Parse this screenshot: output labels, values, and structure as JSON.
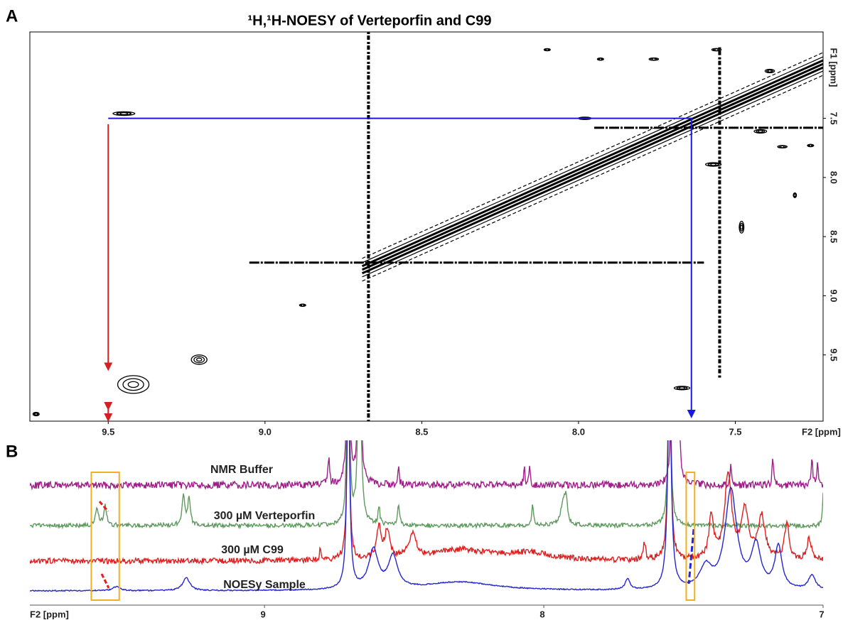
{
  "chart_data": [
    {
      "type": "contour",
      "panel_label": "A",
      "title": "¹H,¹H-NOESY of Verteporfin and C99",
      "xlabel": "F2  [ppm]",
      "ylabel": "F1  [ppm]",
      "xlim": [
        9.75,
        7.22
      ],
      "ylim": [
        6.77,
        10.06
      ],
      "xticks": [
        9.5,
        {
          "value": 9,
          "label": "9.0"
        },
        8.5,
        {
          "value": 8,
          "label": "8.0"
        },
        7.5
      ],
      "yticks": [
        7.5,
        {
          "value": 8,
          "label": "8.0"
        },
        8.5,
        {
          "value": 9,
          "label": "9.0"
        },
        9.5
      ],
      "peaks": [
        [
          9.45,
          7.46,
          0.07,
          0.03
        ],
        [
          9.42,
          9.75,
          0.1,
          0.15
        ],
        [
          9.21,
          9.54,
          0.05,
          0.08
        ],
        [
          8.88,
          9.08,
          0.02,
          0.02
        ],
        [
          9.73,
          10.0,
          0.02,
          0.03
        ],
        [
          7.98,
          7.5,
          0.04,
          0.02
        ],
        [
          7.67,
          9.78,
          0.05,
          0.03
        ],
        [
          7.35,
          7.74,
          0.03,
          0.02
        ],
        [
          7.26,
          7.73,
          0.02,
          0.02
        ],
        [
          7.57,
          7.89,
          0.05,
          0.03
        ],
        [
          8.1,
          6.92,
          0.02,
          0.015
        ],
        [
          7.93,
          7.0,
          0.02,
          0.015
        ],
        [
          7.76,
          7.0,
          0.03,
          0.02
        ],
        [
          7.56,
          6.92,
          0.03,
          0.02
        ],
        [
          7.39,
          7.1,
          0.03,
          0.03
        ],
        [
          7.42,
          7.61,
          0.04,
          0.03
        ],
        [
          7.48,
          8.42,
          0.015,
          0.1
        ],
        [
          7.31,
          8.15,
          0.01,
          0.04
        ]
      ],
      "diagonal": {
        "x": [
          8.69,
          7.22
        ],
        "y": [
          8.78,
          7.04
        ]
      },
      "vertical_streaks": [
        {
          "x": 8.67,
          "y": [
            6.77,
            10.06
          ]
        },
        {
          "x": 7.55,
          "y": [
            6.9,
            9.7
          ]
        }
      ],
      "horizontal_streaks": [
        {
          "y": 8.72,
          "x": [
            9.05,
            7.6
          ]
        },
        {
          "y": 7.58,
          "x": [
            7.95,
            7.22
          ]
        }
      ],
      "guides": [
        {
          "color": "#1a1adc",
          "x": [
            9.5,
            7.64,
            7.64
          ],
          "y": [
            7.5,
            7.5,
            10.0
          ]
        },
        {
          "color": "#d42020",
          "x": [
            9.5,
            9.5
          ],
          "y": [
            7.55,
            9.6
          ]
        }
      ]
    },
    {
      "type": "spectra",
      "panel_label": "B",
      "xlabel": "F2  [ppm]",
      "xlim": [
        9.84,
        7.0
      ],
      "xticks": [
        9,
        8,
        7
      ],
      "series": [
        {
          "name": "NMR Buffer",
          "color": "#a0208a",
          "peaks": [
            [
              8.77,
              40,
              0.006
            ],
            [
              8.7,
              300,
              0.01
            ],
            [
              8.66,
              300,
              0.01
            ],
            [
              8.52,
              25,
              0.006
            ],
            [
              8.07,
              30,
              0.005
            ],
            [
              8.05,
              30,
              0.005
            ],
            [
              7.54,
              300,
              0.008
            ],
            [
              7.52,
              300,
              0.008
            ],
            [
              7.33,
              30,
              0.006
            ],
            [
              7.18,
              40,
              0.006
            ],
            [
              7.04,
              40,
              0.006
            ],
            [
              7.02,
              30,
              0.006
            ]
          ]
        },
        {
          "name": "300 µM Verteporfin",
          "color": "#5f9a5f",
          "peaks": [
            [
              9.6,
              25,
              0.012
            ],
            [
              9.57,
              28,
              0.012
            ],
            [
              9.29,
              45,
              0.012
            ],
            [
              9.27,
              40,
              0.01
            ],
            [
              8.7,
              300,
              0.01
            ],
            [
              8.66,
              300,
              0.012
            ],
            [
              8.59,
              25,
              0.008
            ],
            [
              8.52,
              30,
              0.008
            ],
            [
              8.04,
              30,
              0.008
            ],
            [
              7.93,
              35,
              0.02
            ],
            [
              7.92,
              30,
              0.01
            ],
            [
              7.55,
              300,
              0.01
            ],
            [
              7.0,
              45,
              0.006
            ]
          ]
        },
        {
          "name": "300 µM C99",
          "color": "#e02020",
          "peaks": [
            [
              8.8,
              20,
              0.006
            ],
            [
              8.7,
              300,
              0.01
            ],
            [
              8.59,
              45,
              0.02
            ],
            [
              8.56,
              40,
              0.02
            ],
            [
              8.47,
              35,
              0.03
            ],
            [
              8.3,
              15,
              0.25
            ],
            [
              8.05,
              10,
              0.2
            ],
            [
              7.64,
              25,
              0.01
            ],
            [
              7.55,
              300,
              0.012
            ],
            [
              7.4,
              60,
              0.02
            ],
            [
              7.34,
              120,
              0.03
            ],
            [
              7.28,
              70,
              0.03
            ],
            [
              7.22,
              60,
              0.03
            ],
            [
              7.13,
              50,
              0.02
            ],
            [
              7.05,
              30,
              0.02
            ]
          ]
        },
        {
          "name": "NOESy Sample",
          "color": "#2626d0",
          "peaks": [
            [
              9.53,
              6,
              0.03
            ],
            [
              9.28,
              18,
              0.03
            ],
            [
              8.7,
              300,
              0.012
            ],
            [
              8.61,
              55,
              0.04
            ],
            [
              8.54,
              45,
              0.04
            ],
            [
              8.3,
              12,
              0.3
            ],
            [
              7.7,
              15,
              0.02
            ],
            [
              7.55,
              300,
              0.015
            ],
            [
              7.42,
              30,
              0.05
            ],
            [
              7.33,
              140,
              0.05
            ],
            [
              7.24,
              60,
              0.04
            ],
            [
              7.16,
              60,
              0.03
            ],
            [
              7.04,
              20,
              0.03
            ]
          ]
        }
      ],
      "highlight_boxes": {
        "color": "#f0b020",
        "x": [
          [
            9.62,
            9.52
          ],
          [
            7.49,
            7.46
          ]
        ]
      }
    }
  ]
}
